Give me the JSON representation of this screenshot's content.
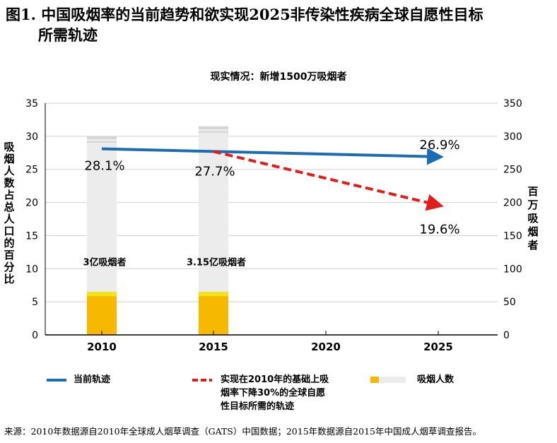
{
  "title": {
    "line1": "图1. 中国吸烟率的当前趋势和欲实现2025非传染性疾病全球自愿性目标",
    "line2": "所需轨迹"
  },
  "chart_data": {
    "type": "bar",
    "subtitle": "现实情况：新增1500万吸烟者",
    "categories": [
      "2010",
      "2015",
      "2020",
      "2025"
    ],
    "ylabel_left": "吸烟人数占总人口的百分比",
    "ylabel_right": "百万吸烟者",
    "ylim_left": [
      0,
      35
    ],
    "ylim_right": [
      0,
      350
    ],
    "yticks_left": [
      "0",
      "5",
      "10",
      "15",
      "20",
      "25",
      "30",
      "35"
    ],
    "yticks_right": [
      "0",
      "50",
      "100",
      "150",
      "200",
      "250",
      "300",
      "350"
    ],
    "bars": [
      {
        "category": "2010",
        "value_millions": 300,
        "label": "3亿吸烟者"
      },
      {
        "category": "2015",
        "value_millions": 315,
        "label": "3.15亿吸烟者"
      }
    ],
    "series": [
      {
        "name": "当前轨迹",
        "color": "#1b6cb3",
        "style": "solid",
        "points": [
          {
            "x": "2010",
            "y": 28.1,
            "label": "28.1%"
          },
          {
            "x": "2025",
            "y": 26.9,
            "label": "26.9%"
          }
        ]
      },
      {
        "name": "实现在2010年的基础上吸烟率下降30%的全球自愿性目标所需的轨迹",
        "color": "#e31b1b",
        "style": "dashed",
        "points": [
          {
            "x": "2015",
            "y": 27.7,
            "label": "27.7%"
          },
          {
            "x": "2025",
            "y": 19.6,
            "label": "19.6%"
          }
        ]
      }
    ],
    "bar_legend": "吸烟人数",
    "grid": true,
    "legend_position": "bottom"
  },
  "legend": {
    "current": {
      "line1": "当前轨迹"
    },
    "target": {
      "line1": "实现在2010年的基础上吸",
      "line2": "烟率下降30%的全球自愿",
      "line3": "性目标所需的轨迹"
    },
    "smokers": {
      "line1": "吸烟人数"
    }
  },
  "colors": {
    "current": "#1b6cb3",
    "target": "#e31b1b",
    "bar_gray": "#ececec",
    "bar_gray_dark": "#d4d4d4",
    "bar_yellow": "#f6b800",
    "bar_yellow_light": "#f4e21a",
    "grid": "#cfcfcf"
  },
  "source": "来源：2010年数据源自2010年全球成人烟草调查（GATS）中国数据；2015年数据源自2015年中国成人烟草调查报告。"
}
